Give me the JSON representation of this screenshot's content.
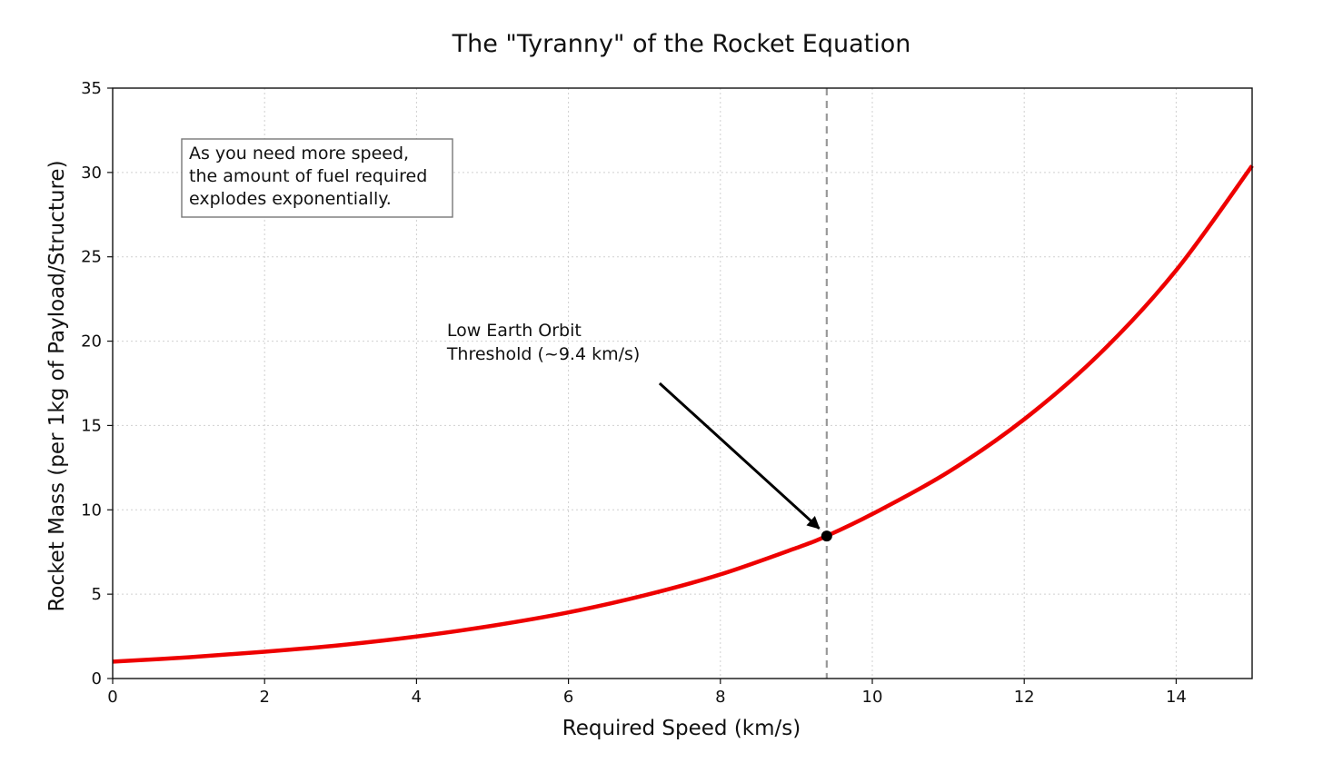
{
  "chart_data": {
    "type": "line",
    "title": "The \"Tyranny\" of the Rocket Equation",
    "xlabel": "Required Speed (km/s)",
    "ylabel": "Rocket Mass (per 1kg of Payload/Structure)",
    "xlim": [
      0,
      15
    ],
    "ylim": [
      0,
      35
    ],
    "xticks": [
      "0",
      "2",
      "4",
      "6",
      "8",
      "10",
      "12",
      "14"
    ],
    "yticks": [
      "0",
      "5",
      "10",
      "15",
      "20",
      "25",
      "30",
      "35"
    ],
    "grid": true,
    "series": [
      {
        "color": "#ee0000",
        "x": [
          0,
          1,
          2,
          3,
          4,
          5,
          6,
          7,
          8,
          9,
          9.4,
          10,
          11,
          12,
          13,
          14,
          15
        ],
        "y": [
          1.0,
          1.26,
          1.59,
          1.98,
          2.49,
          3.13,
          3.92,
          4.93,
          6.17,
          7.74,
          8.45,
          9.75,
          12.24,
          15.37,
          19.28,
          24.2,
          30.4
        ]
      }
    ],
    "reference_line": {
      "x": 9.4,
      "style": "dashed",
      "color": "#999999"
    },
    "marker": {
      "x": 9.4,
      "y": 8.45,
      "color": "#000000"
    },
    "annotation": {
      "lines": [
        "Low Earth Orbit",
        "Threshold (~9.4 km/s)"
      ],
      "text_anchor": {
        "x": 4.4,
        "y": 20.3
      },
      "arrow_tail": {
        "x": 7.2,
        "y": 17.5
      },
      "arrow_head": {
        "x": 9.3,
        "y": 8.9
      }
    },
    "note": {
      "lines": [
        "As you need more speed,",
        "the amount of fuel required",
        "explodes exponentially."
      ],
      "placement": "top-left"
    }
  }
}
